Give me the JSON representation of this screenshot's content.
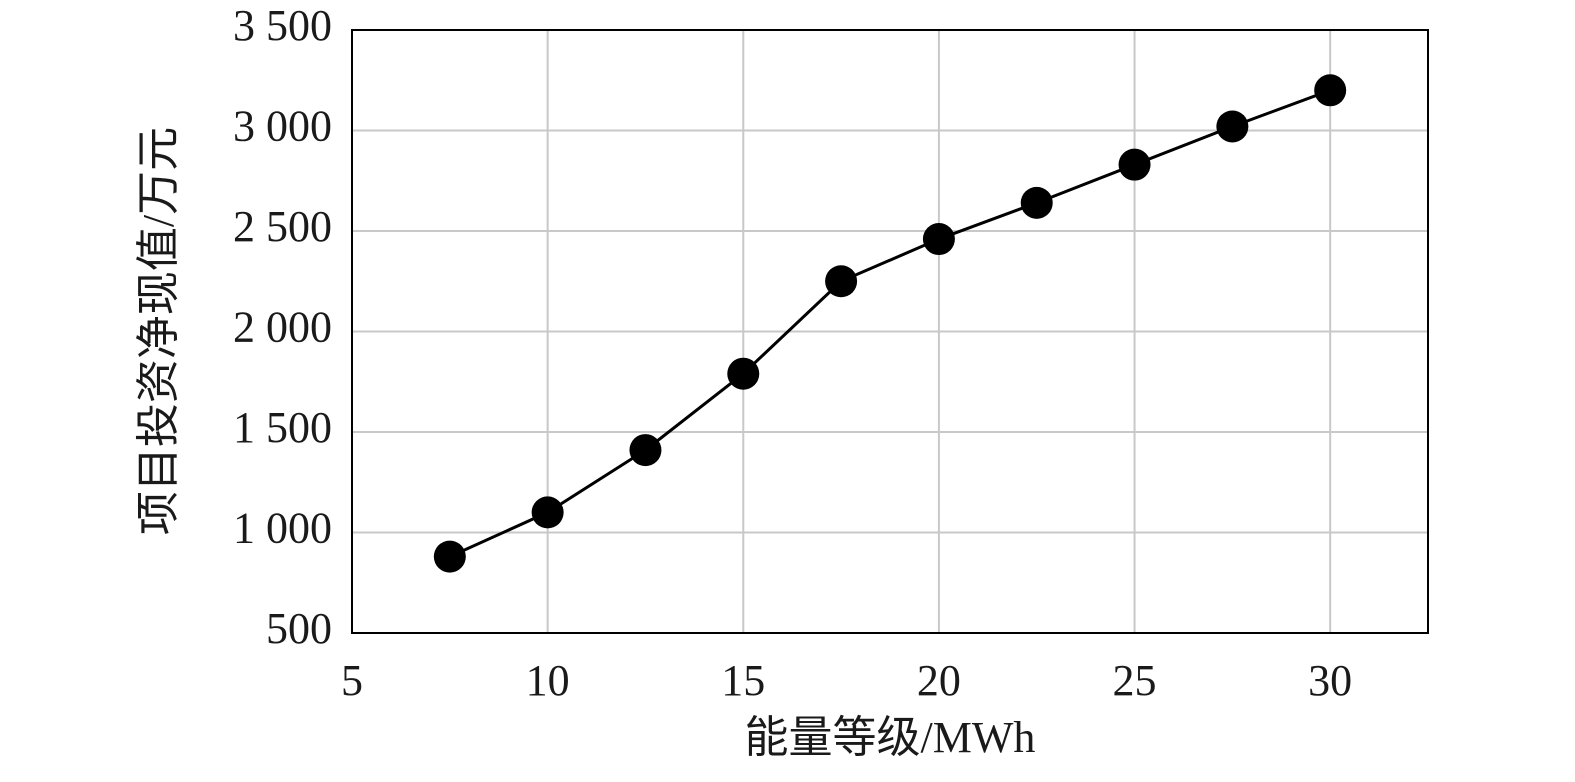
{
  "chart_data": {
    "type": "line",
    "x_label": "能量等级/MWh",
    "y_label": "项目投资净现值/万元",
    "x": [
      7.5,
      10,
      12.5,
      15,
      17.5,
      20,
      22.5,
      25,
      27.5,
      30
    ],
    "series": [
      {
        "color": "#000000",
        "values": [
          880,
          1100,
          1410,
          1790,
          2250,
          2460,
          2640,
          2830,
          3020,
          3200
        ]
      }
    ],
    "xlim": [
      5,
      32.5
    ],
    "xticks": [
      5,
      10,
      15,
      20,
      25,
      30
    ],
    "ylim": [
      500,
      3500
    ],
    "yticks": [
      500,
      {
        "value": 1000,
        "label": "1 000"
      },
      {
        "value": 1500,
        "label": "1 500"
      },
      {
        "value": 2000,
        "label": "2 000"
      },
      {
        "value": 2500,
        "label": "2 500"
      },
      {
        "value": 3000,
        "label": "3 000"
      },
      {
        "value": 3500,
        "label": "3 500"
      }
    ],
    "grid": true
  }
}
